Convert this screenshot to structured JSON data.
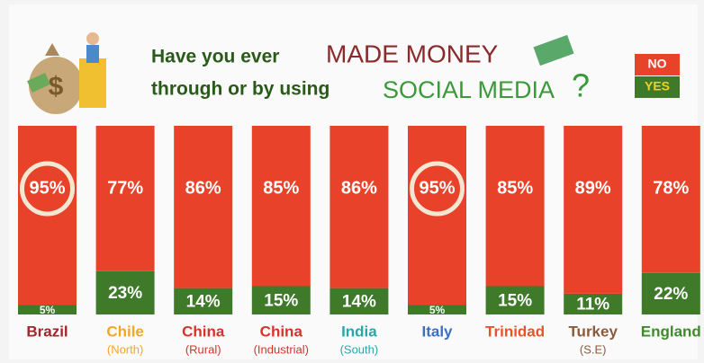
{
  "chart_data": {
    "type": "stacked_bar",
    "title": [
      "Have you ever",
      "MADE MONEY",
      "through or by using",
      "SOCIAL MEDIA",
      "?"
    ],
    "categories": [
      "Brazil",
      "Chile",
      "China",
      "China",
      "India",
      "Italy",
      "Trinidad",
      "Turkey",
      "England"
    ],
    "category_sublabels": [
      null,
      "(North)",
      "(Rural)",
      "(Industrial)",
      "(South)",
      null,
      null,
      "(S.E)",
      null
    ],
    "category_colors": [
      "#a3262a",
      "#f5a623",
      "#d8322a",
      "#d8322a",
      "#2aa6a8",
      "#3a6fc4",
      "#e8542a",
      "#8a5a3a",
      "#3f8a2a"
    ],
    "series": [
      {
        "name": "NO",
        "color": "#e8432a",
        "values": [
          95,
          77,
          86,
          85,
          86,
          95,
          85,
          89,
          78
        ],
        "value_labels": [
          "95%",
          "77%",
          "86%",
          "85%",
          "86%",
          "95%",
          "85%",
          "89%",
          "78%"
        ]
      },
      {
        "name": "YES",
        "color": "#3f7a2a",
        "values": [
          5,
          23,
          14,
          15,
          14,
          5,
          15,
          11,
          22
        ],
        "value_labels": [
          "5%",
          "23%",
          "14%",
          "15%",
          "14%",
          "5%",
          "15%",
          "11%",
          "22%"
        ]
      }
    ],
    "ylim": [
      0,
      100
    ]
  }
}
